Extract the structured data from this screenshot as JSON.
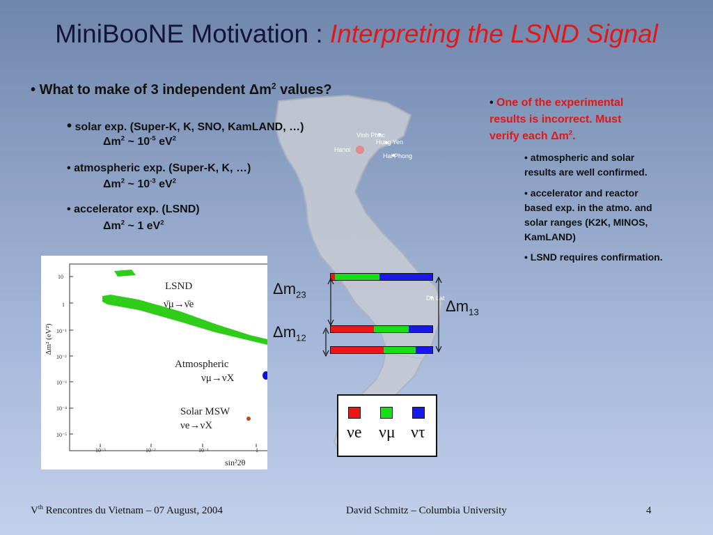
{
  "title": {
    "main": "MiniBooNE Motivation : ",
    "highlight": "Interpreting the LSND Signal"
  },
  "left": {
    "question_prefix": "What to make of 3 independent ",
    "question_delta": "Δm",
    "question_sup": "2",
    "question_suffix": " values?",
    "items": [
      {
        "label": "solar exp.  (Super-K, K, SNO, KamLAND, …)",
        "eq_delta": "Δm",
        "eq_sup": "2",
        "eq_mid": " ~ 10",
        "eq_exp": "-5",
        "eq_unit": " eV",
        "eq_unit_sup": "2"
      },
      {
        "label": "atmospheric exp.  (Super-K, K, …)",
        "eq_delta": "Δm",
        "eq_sup": "2",
        "eq_mid": " ~ 10",
        "eq_exp": "-3",
        "eq_unit": " eV",
        "eq_unit_sup": "2"
      },
      {
        "label": "accelerator exp.  (LSND)",
        "eq_delta": "Δm",
        "eq_sup": "2",
        "eq_mid": " ~ 1 eV",
        "eq_exp": "",
        "eq_unit": "",
        "eq_unit_sup": "2"
      }
    ]
  },
  "right": {
    "note_line1": "One of the experimental",
    "note_line2": "results is incorrect.  Must",
    "note_line3_prefix": "verify each ",
    "note_line3_delta": "Δm",
    "note_line3_sup": "2",
    "note_line3_suffix": ".",
    "sub_items": [
      [
        "atmospheric and solar",
        "results are well confirmed."
      ],
      [
        "accelerator and reactor",
        "based exp. in the atmo. and",
        "solar ranges (K2K, MINOS,",
        "KamLAND)"
      ],
      [
        "LSND requires confirmation."
      ]
    ]
  },
  "map": {
    "cities": [
      "Vinh Phuc",
      "Hung Yen",
      "Hanoi",
      "Hai Phong",
      "Da Lat"
    ]
  },
  "plot": {
    "y_label": "Δm² (eV²)",
    "y_ticks": [
      "10",
      "1",
      "10⁻¹",
      "10⁻²",
      "10⁻³",
      "10⁻⁴",
      "10⁻⁵"
    ],
    "x_ticks": [
      "10⁻³",
      "10⁻²",
      "10⁻¹",
      "1"
    ],
    "x_label": "sin²2θ",
    "regions": [
      {
        "name": "LSND",
        "process": "ν̄μ→ν̄e",
        "color": "#2fcc1a"
      },
      {
        "name": "Atmospheric",
        "process": "νμ→νX",
        "color": "#1010dd"
      },
      {
        "name": "Solar MSW",
        "process": "νe→νX",
        "color": "#b54a1a"
      }
    ]
  },
  "mass_diagram": {
    "label_23": "Δm",
    "sub_23": "23",
    "label_13": "Δm",
    "sub_13": "13",
    "label_12": "Δm",
    "sub_12": "12",
    "colors": {
      "e": "#e81818",
      "mu": "#18dd18",
      "tau": "#1818e8"
    },
    "legend": [
      "νe",
      "νμ",
      "ντ"
    ]
  },
  "footer": {
    "left_v": "V",
    "left_sup": "th",
    "left_rest": " Rencontres du Vietnam – 07 August, 2004",
    "center": "David Schmitz – Columbia University",
    "page": "4"
  }
}
